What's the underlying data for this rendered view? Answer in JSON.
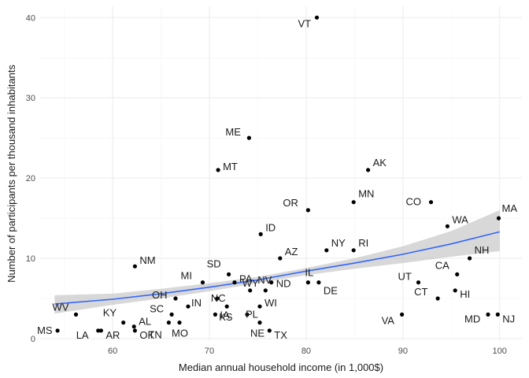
{
  "chart_data": {
    "type": "scatter",
    "xlabel": "Median annual household income (in 1,000$)",
    "ylabel": "Number of participants per thousand inhabitants",
    "xlim": [
      52.5,
      102.3
    ],
    "ylim": [
      -0.3,
      41.4
    ],
    "x_ticks": [
      60,
      70,
      80,
      90,
      100
    ],
    "y_ticks": [
      0,
      10,
      20,
      30,
      40
    ],
    "grid": true,
    "theme": "minimal",
    "colors": {
      "points": "#000000",
      "fit_line": "#3366FF",
      "confidence_band": "#BEBEBE",
      "grid_major": "#EBEBEB",
      "grid_minor": "#F5F5F5"
    },
    "trend": {
      "method": "smooth",
      "x": [
        54,
        60,
        65,
        70,
        75,
        80,
        85,
        90,
        95,
        100
      ],
      "y": [
        4.3,
        4.9,
        5.6,
        6.4,
        7.3,
        8.4,
        9.4,
        10.5,
        11.8,
        13.3
      ],
      "ci_upper": [
        5.4,
        5.6,
        6.2,
        6.9,
        7.7,
        8.8,
        10.0,
        11.5,
        13.4,
        16.0
      ],
      "ci_lower": [
        3.1,
        4.2,
        5.0,
        5.9,
        6.9,
        7.9,
        8.7,
        9.4,
        10.2,
        10.9
      ]
    },
    "points": [
      {
        "label": "MS",
        "x": 54.3,
        "y": 1
      },
      {
        "label": "WV",
        "x": 56.2,
        "y": 3
      },
      {
        "label": "LA",
        "x": 58.5,
        "y": 1
      },
      {
        "label": "AR",
        "x": 58.8,
        "y": 1
      },
      {
        "label": "KY",
        "x": 61.1,
        "y": 2
      },
      {
        "label": "AL",
        "x": 62.2,
        "y": 1.5
      },
      {
        "label": "OK",
        "x": 62.3,
        "y": 1
      },
      {
        "label": "NM",
        "x": 62.3,
        "y": 9
      },
      {
        "label": "TN",
        "x": 65.8,
        "y": 2
      },
      {
        "label": "SC",
        "x": 66.1,
        "y": 3
      },
      {
        "label": "OH",
        "x": 66.5,
        "y": 5
      },
      {
        "label": "MO",
        "x": 66.9,
        "y": 2
      },
      {
        "label": "IN",
        "x": 67.8,
        "y": 4
      },
      {
        "label": "MI",
        "x": 69.3,
        "y": 7
      },
      {
        "label": "IA",
        "x": 70.6,
        "y": 3
      },
      {
        "label": "NC",
        "x": 70.8,
        "y": 5
      },
      {
        "label": "MT",
        "x": 70.9,
        "y": 21
      },
      {
        "label": "KS",
        "x": 71.8,
        "y": 4
      },
      {
        "label": "SD",
        "x": 72.0,
        "y": 8
      },
      {
        "label": "PA",
        "x": 72.6,
        "y": 7
      },
      {
        "label": "PL",
        "x": 73.9,
        "y": 3
      },
      {
        "label": "ME",
        "x": 74.1,
        "y": 25
      },
      {
        "label": "WY",
        "x": 74.2,
        "y": 6
      },
      {
        "label": "NE",
        "x": 75.2,
        "y": 2
      },
      {
        "label": "WI",
        "x": 75.2,
        "y": 4
      },
      {
        "label": "ID",
        "x": 75.3,
        "y": 13
      },
      {
        "label": "NV",
        "x": 75.8,
        "y": 6
      },
      {
        "label": "TX",
        "x": 76.2,
        "y": 1
      },
      {
        "label": "ND",
        "x": 76.4,
        "y": 7
      },
      {
        "label": "AZ",
        "x": 77.3,
        "y": 10
      },
      {
        "label": "IL",
        "x": 80.2,
        "y": 7
      },
      {
        "label": "OR",
        "x": 80.2,
        "y": 16
      },
      {
        "label": "VT",
        "x": 81.1,
        "y": 40
      },
      {
        "label": "DE",
        "x": 81.3,
        "y": 7
      },
      {
        "label": "NY",
        "x": 82.1,
        "y": 11
      },
      {
        "label": "RI",
        "x": 84.9,
        "y": 11
      },
      {
        "label": "MN",
        "x": 84.9,
        "y": 17
      },
      {
        "label": "AK",
        "x": 86.4,
        "y": 21
      },
      {
        "label": "VA",
        "x": 89.9,
        "y": 3
      },
      {
        "label": "UT",
        "x": 91.6,
        "y": 7
      },
      {
        "label": "CO",
        "x": 92.9,
        "y": 17
      },
      {
        "label": "CT",
        "x": 93.6,
        "y": 5
      },
      {
        "label": "WA",
        "x": 94.6,
        "y": 14
      },
      {
        "label": "HI",
        "x": 95.4,
        "y": 6
      },
      {
        "label": "CA",
        "x": 95.6,
        "y": 8
      },
      {
        "label": "NH",
        "x": 96.9,
        "y": 10
      },
      {
        "label": "MD",
        "x": 98.8,
        "y": 3
      },
      {
        "label": "NJ",
        "x": 99.8,
        "y": 3
      },
      {
        "label": "MA",
        "x": 99.9,
        "y": 15
      }
    ]
  }
}
